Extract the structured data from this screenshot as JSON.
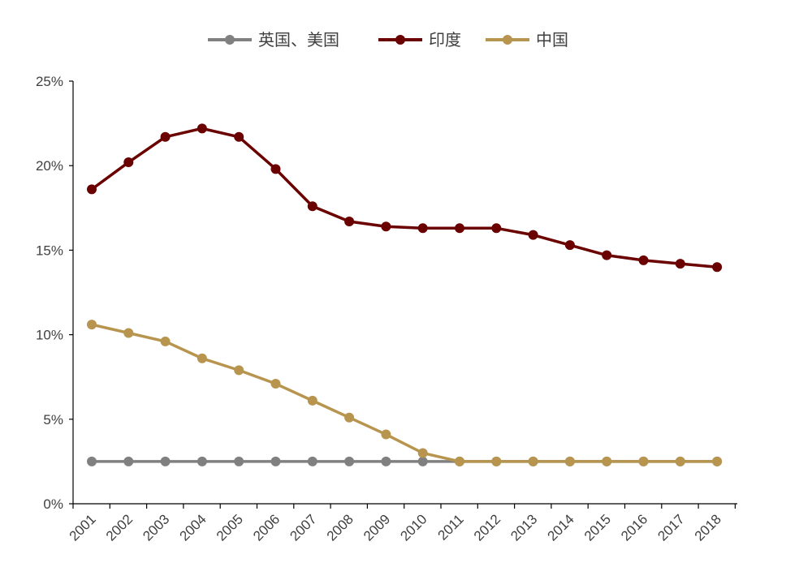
{
  "chart_data": {
    "type": "line",
    "title": "",
    "xlabel": "",
    "ylabel": "",
    "x": [
      "2001",
      "2002",
      "2003",
      "2004",
      "2005",
      "2006",
      "2007",
      "2008",
      "2009",
      "2010",
      "2011",
      "2012",
      "2013",
      "2014",
      "2015",
      "2016",
      "2017",
      "2018"
    ],
    "ylim": [
      0,
      25
    ],
    "y_ticks": [
      "0%",
      "5%",
      "10%",
      "15%",
      "20%",
      "25%"
    ],
    "y_tick_values": [
      0,
      5,
      10,
      15,
      20,
      25
    ],
    "grid": false,
    "legend_position": "top-center",
    "series": [
      {
        "name": "英国、美国",
        "color": "#808080",
        "values": [
          2.5,
          2.5,
          2.5,
          2.5,
          2.5,
          2.5,
          2.5,
          2.5,
          2.5,
          2.5,
          2.5,
          2.5,
          2.5,
          2.5,
          2.5,
          2.5,
          2.5,
          2.5
        ]
      },
      {
        "name": "印度",
        "color": "#6b0000",
        "values": [
          18.6,
          20.2,
          21.7,
          22.2,
          21.7,
          19.8,
          17.6,
          16.7,
          16.4,
          16.3,
          16.3,
          16.3,
          15.9,
          15.3,
          14.7,
          14.4,
          14.2,
          14.0
        ]
      },
      {
        "name": "中国",
        "color": "#b8954f",
        "values": [
          10.6,
          10.1,
          9.6,
          8.6,
          7.9,
          7.1,
          6.1,
          5.1,
          4.1,
          3.0,
          2.5,
          2.5,
          2.5,
          2.5,
          2.5,
          2.5,
          2.5,
          2.5
        ]
      }
    ]
  }
}
